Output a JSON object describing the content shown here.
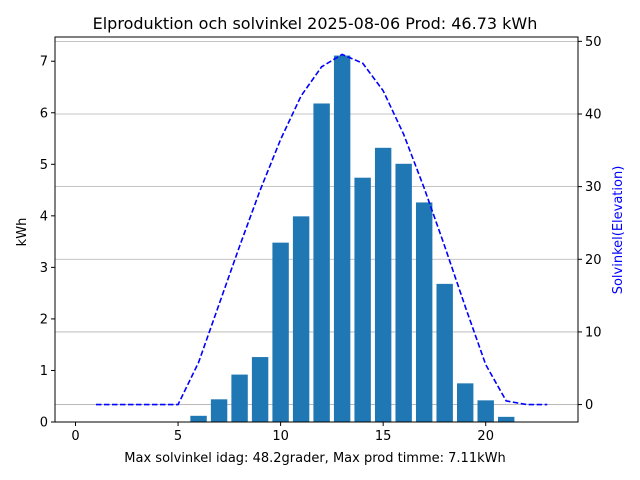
{
  "chart_data": {
    "type": "bar",
    "title": "Elproduktion och solvinkel 2025-08-06 Prod: 46.73 kWh",
    "xlabel": "Max solvinkel idag: 48.2grader, Max prod timme: 7.11kWh",
    "ylabel": "kWh",
    "ylabel_right": "Solvinkel(Elevation)",
    "xlim": [
      -1,
      24.5
    ],
    "ylim": [
      0,
      7.47
    ],
    "ylim_right": [
      -2.4,
      50.6
    ],
    "x_ticks": [
      0,
      5,
      10,
      15,
      20
    ],
    "y_ticks": [
      0,
      1,
      2,
      3,
      4,
      5,
      6,
      7
    ],
    "y_ticks_right": [
      0,
      10,
      20,
      30,
      40,
      50
    ],
    "grid": "horizontal (right axis)",
    "colors": {
      "bars": "#1f77b4",
      "line": "#0000ff",
      "grid": "#b0b0b0"
    },
    "bars": {
      "x": [
        6,
        7,
        8,
        9,
        10,
        11,
        12,
        13,
        14,
        15,
        16,
        17,
        18,
        19,
        20,
        21
      ],
      "values": [
        0.12,
        0.44,
        0.92,
        1.26,
        3.48,
        3.99,
        6.18,
        7.11,
        4.74,
        5.32,
        5.01,
        4.26,
        2.68,
        0.75,
        0.42,
        0.1
      ]
    },
    "line": {
      "x": [
        1,
        2,
        3,
        4,
        5,
        6,
        7,
        8,
        9,
        10,
        11,
        12,
        13,
        14,
        15,
        16,
        17,
        18,
        19,
        20,
        21,
        22,
        23
      ],
      "values": [
        0,
        0,
        0,
        0,
        0,
        5.8,
        13.8,
        21.8,
        29.5,
        36.5,
        42.5,
        46.5,
        48.2,
        47,
        43.2,
        37.2,
        29.8,
        21.8,
        13.5,
        5.5,
        0.5,
        0,
        0
      ]
    }
  }
}
